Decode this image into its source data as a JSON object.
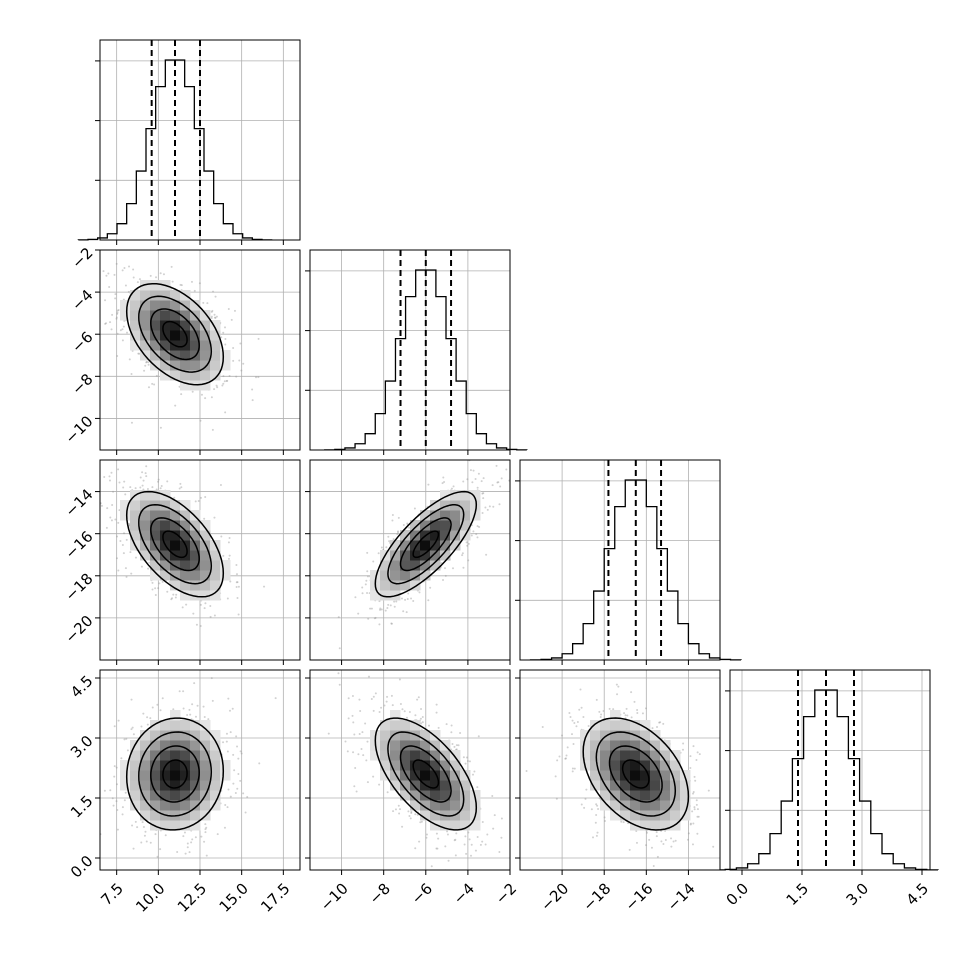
{
  "chart_data": {
    "type": "corner",
    "title": "",
    "parameters": [
      {
        "label": "",
        "range": [
          6.5,
          18.5
        ],
        "ticks": [
          "7.5",
          "10.0",
          "12.5",
          "15.0",
          "17.5"
        ],
        "tick_values": [
          7.5,
          10.0,
          12.5,
          15.0,
          17.5
        ],
        "quantiles": [
          9.6,
          11.0,
          12.5
        ],
        "distribution": {
          "mean": 11.0,
          "sd": 1.45
        }
      },
      {
        "label": "",
        "range": [
          -11.5,
          -2.0
        ],
        "ticks": [
          "-10",
          "-8",
          "-6",
          "-4",
          "-2"
        ],
        "tick_values": [
          -10,
          -8,
          -6,
          -4,
          -2
        ],
        "quantiles": [
          -7.2,
          -6.0,
          -4.8
        ],
        "distribution": {
          "mean": -6.0,
          "sd": 1.2
        }
      },
      {
        "label": "",
        "range": [
          -22.0,
          -12.5
        ],
        "ticks": [
          "-20",
          "-18",
          "-16",
          "-14"
        ],
        "tick_values": [
          -20,
          -18,
          -16,
          -14
        ],
        "quantiles": [
          -17.8,
          -16.5,
          -15.3
        ],
        "distribution": {
          "mean": -16.5,
          "sd": 1.25
        }
      },
      {
        "label": "",
        "range": [
          -0.3,
          4.7
        ],
        "ticks": [
          "0.0",
          "1.5",
          "3.0",
          "4.5"
        ],
        "tick_values": [
          0.0,
          1.5,
          3.0,
          4.5
        ],
        "quantiles": [
          1.4,
          2.1,
          2.8
        ],
        "distribution": {
          "mean": 2.1,
          "sd": 0.7
        }
      }
    ],
    "correlations": [
      {
        "x_param": 0,
        "y_param": 1,
        "rho": -0.45
      },
      {
        "x_param": 0,
        "y_param": 2,
        "rho": -0.55
      },
      {
        "x_param": 1,
        "y_param": 2,
        "rho": 0.75
      },
      {
        "x_param": 0,
        "y_param": 3,
        "rho": 0.05
      },
      {
        "x_param": 1,
        "y_param": 3,
        "rho": -0.6
      },
      {
        "x_param": 2,
        "y_param": 3,
        "rho": -0.4
      }
    ],
    "contour_levels_sigma": [
      0.5,
      1.0,
      1.5,
      2.0
    ],
    "histogram_bins": 20,
    "grid": true,
    "quantile_line_style": "dashed",
    "colors": {
      "line": "#000000",
      "points": "#999999",
      "grid": "#b0b0b0"
    }
  }
}
